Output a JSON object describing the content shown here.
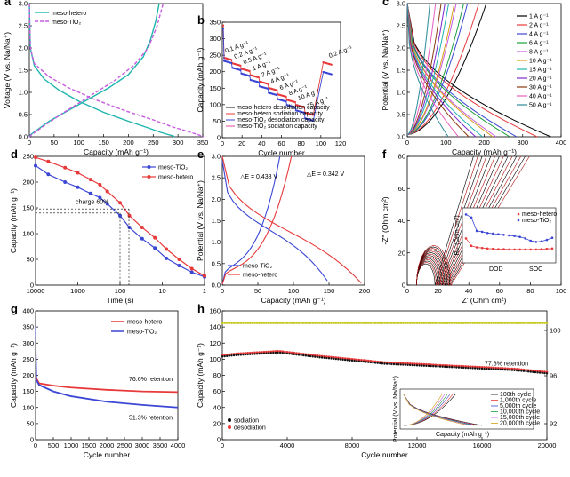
{
  "colors": {
    "meso_hetero": "#1fb5ad",
    "meso_tio2": "#c85be0",
    "red": "#e8393a",
    "blue": "#3b46d4",
    "olive": "#c6c81e",
    "black": "#111111"
  },
  "chart_data": [
    {
      "id": "a",
      "type": "line",
      "panel_label": "a",
      "xlabel": "Capacity (mAh g⁻¹)",
      "ylabel": "Voltage (V vs. Na/Na⁺)",
      "xlim": [
        0,
        350
      ],
      "ylim": [
        0,
        3.0
      ],
      "xticks": [
        "0",
        "50",
        "100",
        "150",
        "200",
        "250",
        "300",
        "350"
      ],
      "yticks": [
        "0.0",
        "0.5",
        "1.0",
        "1.5",
        "2.0",
        "2.5",
        "3.0"
      ],
      "legend": [
        "meso-hetero",
        "meso-TiO₂"
      ],
      "series": [
        {
          "name": "meso-hetero",
          "style": "solid",
          "color": "#1fb5ad",
          "x": [
            0,
            2,
            10,
            30,
            60,
            100,
            150,
            200,
            240,
            265,
            280,
            290,
            293
          ],
          "y": [
            3.0,
            2.0,
            1.6,
            1.3,
            1.05,
            0.8,
            0.55,
            0.35,
            0.2,
            0.1,
            0.05,
            0.02,
            0.0
          ]
        },
        {
          "name": "meso-hetero",
          "style": "solid",
          "color": "#1fb5ad",
          "x": [
            0,
            3,
            15,
            40,
            80,
            120,
            160,
            200,
            230,
            245,
            255,
            262
          ],
          "y": [
            0.0,
            0.05,
            0.15,
            0.35,
            0.6,
            0.85,
            1.1,
            1.4,
            1.8,
            2.2,
            2.6,
            3.0
          ]
        },
        {
          "name": "meso-TiO₂",
          "style": "dashed",
          "color": "#c85be0",
          "x": [
            0,
            2,
            10,
            40,
            80,
            130,
            190,
            250,
            290,
            320,
            340,
            352
          ],
          "y": [
            3.0,
            2.0,
            1.65,
            1.35,
            1.1,
            0.85,
            0.6,
            0.38,
            0.22,
            0.12,
            0.05,
            0.0
          ]
        },
        {
          "name": "meso-TiO₂",
          "style": "dashed",
          "color": "#c85be0",
          "x": [
            0,
            5,
            30,
            70,
            120,
            170,
            210,
            240,
            258,
            270
          ],
          "y": [
            0.0,
            0.05,
            0.25,
            0.55,
            0.9,
            1.25,
            1.6,
            2.0,
            2.5,
            3.0
          ]
        }
      ]
    },
    {
      "id": "b",
      "type": "scatter",
      "panel_label": "b",
      "xlabel": "Cycle number",
      "ylabel": "Capacity (mAh g⁻¹)",
      "xlim": [
        0,
        130
      ],
      "ylim": [
        0,
        360
      ],
      "xticks": [
        "0",
        "20",
        "40",
        "60",
        "80",
        "100",
        "120"
      ],
      "yticks": [
        "0",
        "50",
        "100",
        "150",
        "200",
        "250",
        "300",
        "350"
      ],
      "legend": [
        "meso-hetero desodiation capacity",
        "meso-hetero sodiation capacity",
        "meso-TiO₂ desodiation capacity",
        "meso-TiO₂ sodiation capacity"
      ],
      "rate_labels": [
        "0.1 A g⁻¹",
        "0.2 A g⁻¹",
        "0.5 A g⁻¹",
        "1 A g⁻¹",
        "2 A g⁻¹",
        "4 A g⁻¹",
        "6 A g⁻¹",
        "8 A g⁻¹",
        "10 A g⁻¹",
        "15 A g⁻¹",
        "0.2 A g⁻¹"
      ],
      "segments_hetero": [
        250,
        232,
        215,
        195,
        175,
        155,
        135,
        118,
        102,
        78,
        235
      ],
      "segments_tio2": [
        240,
        218,
        200,
        180,
        160,
        140,
        120,
        102,
        85,
        60,
        205
      ]
    },
    {
      "id": "c",
      "type": "line",
      "panel_label": "c",
      "xlabel": "Capacity (mAh g⁻¹)",
      "ylabel": "Potential (V vs. Na/Na⁺)",
      "xlim": [
        0,
        450
      ],
      "ylim": [
        0,
        3.0
      ],
      "xticks": [
        "0",
        "100",
        "200",
        "300",
        "400"
      ],
      "yticks": [
        "0.0",
        "0.5",
        "1.0",
        "1.5",
        "2.0",
        "2.5",
        "3.0"
      ],
      "legend": [
        "1 A g⁻¹",
        "2 A g⁻¹",
        "4 A g⁻¹",
        "6 A g⁻¹",
        "8 A g⁻¹",
        "10 A g⁻¹",
        "15 A g⁻¹",
        "20 A g⁻¹",
        "30 A g⁻¹",
        "40 A g⁻¹",
        "50 A g⁻¹"
      ],
      "series_colors": [
        "#000000",
        "#e8393a",
        "#3b46d4",
        "#1a9e3c",
        "#c85be0",
        "#d4a010",
        "#1fb5ad",
        "#7a2bd0",
        "#8c3a10",
        "#e860c0",
        "#2a8a9a"
      ],
      "end_capacities": [
        420,
        380,
        320,
        300,
        260,
        250,
        220,
        200,
        180,
        150,
        120
      ]
    },
    {
      "id": "d",
      "type": "line",
      "panel_label": "d",
      "xlabel": "Time (s)",
      "ylabel": "Capacity (mAh g⁻¹)",
      "xscale": "log-reversed",
      "ylim": [
        0,
        250
      ],
      "xticks": [
        "10000",
        "1000",
        "100",
        "10",
        "1"
      ],
      "yticks": [
        "0",
        "50",
        "100",
        "150",
        "200",
        "250"
      ],
      "annotation": "charge 60%",
      "legend": [
        "meso-TiO₂",
        "meso-hetero"
      ],
      "series": [
        {
          "name": "meso-TiO₂",
          "color": "#3b46d4",
          "x": [
            10000,
            5000,
            2000,
            1000,
            500,
            300,
            200,
            100,
            60,
            30,
            15,
            8,
            4,
            2,
            1
          ],
          "y": [
            232,
            215,
            200,
            190,
            178,
            170,
            158,
            135,
            112,
            90,
            72,
            52,
            38,
            25,
            16
          ]
        },
        {
          "name": "meso-hetero",
          "color": "#e8393a",
          "x": [
            10000,
            5000,
            2000,
            1000,
            500,
            300,
            200,
            100,
            60,
            30,
            15,
            8,
            4,
            2,
            1
          ],
          "y": [
            248,
            240,
            228,
            218,
            205,
            195,
            182,
            160,
            135,
            112,
            92,
            70,
            50,
            32,
            18
          ]
        }
      ]
    },
    {
      "id": "e",
      "type": "line",
      "panel_label": "e",
      "xlabel": "Capacity (mAh g⁻¹)",
      "ylabel": "Potential (V vs. Na/Na⁺)",
      "xlim": [
        0,
        210
      ],
      "ylim": [
        0,
        3.0
      ],
      "xticks": [
        "0",
        "50",
        "100",
        "150",
        "200"
      ],
      "yticks": [
        "0.0",
        "0.5",
        "1.0",
        "1.5",
        "2.0",
        "2.5",
        "3.0"
      ],
      "annotations": [
        "△E = 0.438 V",
        "△E = 0.342 V"
      ],
      "legend": [
        "meso-TiO₂",
        "meso-hetero"
      ]
    },
    {
      "id": "f",
      "type": "line",
      "panel_label": "f",
      "xlabel": "Z' (Ohm cm²)",
      "ylabel": "-Z'' (Ohm cm²)",
      "xlim": [
        0,
        100
      ],
      "ylim": [
        0,
        80
      ],
      "xticks": [
        "0",
        "20",
        "40",
        "60",
        "80",
        "100"
      ],
      "yticks": [
        "0",
        "20",
        "40",
        "60",
        "80"
      ],
      "inset": {
        "ylabel": "Rₕₜ (Ohm cm²)",
        "xlabel_left": "DOD",
        "xlabel_right": "SOC",
        "legend": [
          "meso-hetero",
          "meso-TiO₂"
        ],
        "hetero": [
          70,
          45,
          40,
          38,
          36,
          35,
          34,
          34,
          33,
          33,
          33,
          33,
          33,
          33,
          34,
          35,
          36
        ],
        "tio2": [
          150,
          140,
          95,
          92,
          88,
          86,
          84,
          82,
          80,
          78,
          75,
          70,
          62,
          58,
          60,
          65,
          72
        ]
      }
    },
    {
      "id": "g",
      "type": "line",
      "panel_label": "g",
      "xlabel": "Cycle number",
      "ylabel": "Capacity (mAh g⁻¹)",
      "xlim": [
        0,
        4000
      ],
      "ylim": [
        0,
        400
      ],
      "xticks": [
        "0",
        "500",
        "1000",
        "1500",
        "2000",
        "2500",
        "3000",
        "3500",
        "4000"
      ],
      "yticks": [
        "0",
        "50",
        "100",
        "150",
        "200",
        "250",
        "300",
        "350",
        "400"
      ],
      "annotations": [
        "76.6% retention",
        "51.3% retention"
      ],
      "legend": [
        "meso-hetero",
        "meso-TiO₂"
      ],
      "series": [
        {
          "name": "meso-hetero",
          "color": "#e8393a",
          "x": [
            0,
            100,
            500,
            1000,
            2000,
            3000,
            4000
          ],
          "y": [
            195,
            175,
            168,
            162,
            155,
            150,
            148
          ]
        },
        {
          "name": "meso-TiO₂",
          "color": "#3b46d4",
          "x": [
            0,
            100,
            500,
            1000,
            2000,
            3000,
            4000
          ],
          "y": [
            190,
            170,
            150,
            135,
            118,
            108,
            100
          ]
        }
      ]
    },
    {
      "id": "h",
      "type": "scatter",
      "panel_label": "h",
      "xlabel": "Cycle number",
      "ylabel": "Capacity (mAh g⁻¹)",
      "ylabel_right": "Coulombic efficiency (%)",
      "xlim": [
        0,
        20000
      ],
      "ylim": [
        0,
        160
      ],
      "xticks": [
        "0",
        "4000",
        "8000",
        "12000",
        "16000",
        "20000"
      ],
      "yticks": [
        "0",
        "20",
        "40",
        "60",
        "80",
        "100",
        "120",
        "140",
        "160"
      ],
      "yticks_right": [
        "92",
        "96",
        "100"
      ],
      "annotation": "77.8% retention",
      "legend": [
        "sodiation",
        "desodiation"
      ],
      "capacity": {
        "x": [
          0,
          1000,
          3500,
          6000,
          10000,
          14000,
          18000,
          20000
        ],
        "y": [
          105,
          107,
          110,
          104,
          96,
          92,
          88,
          84
        ]
      },
      "ce": {
        "x": [
          0,
          20000
        ],
        "y": [
          145,
          145
        ]
      },
      "inset": {
        "xlabel": "Capacity (mAh g⁻¹)",
        "ylabel": "Potential (V vs. Na/Na⁺)",
        "legend": [
          "100th cycle",
          "1,000th cycle",
          "5,000th cycle",
          "10,000th cycle",
          "15,000th cycle",
          "20,000th cycle"
        ]
      }
    }
  ]
}
